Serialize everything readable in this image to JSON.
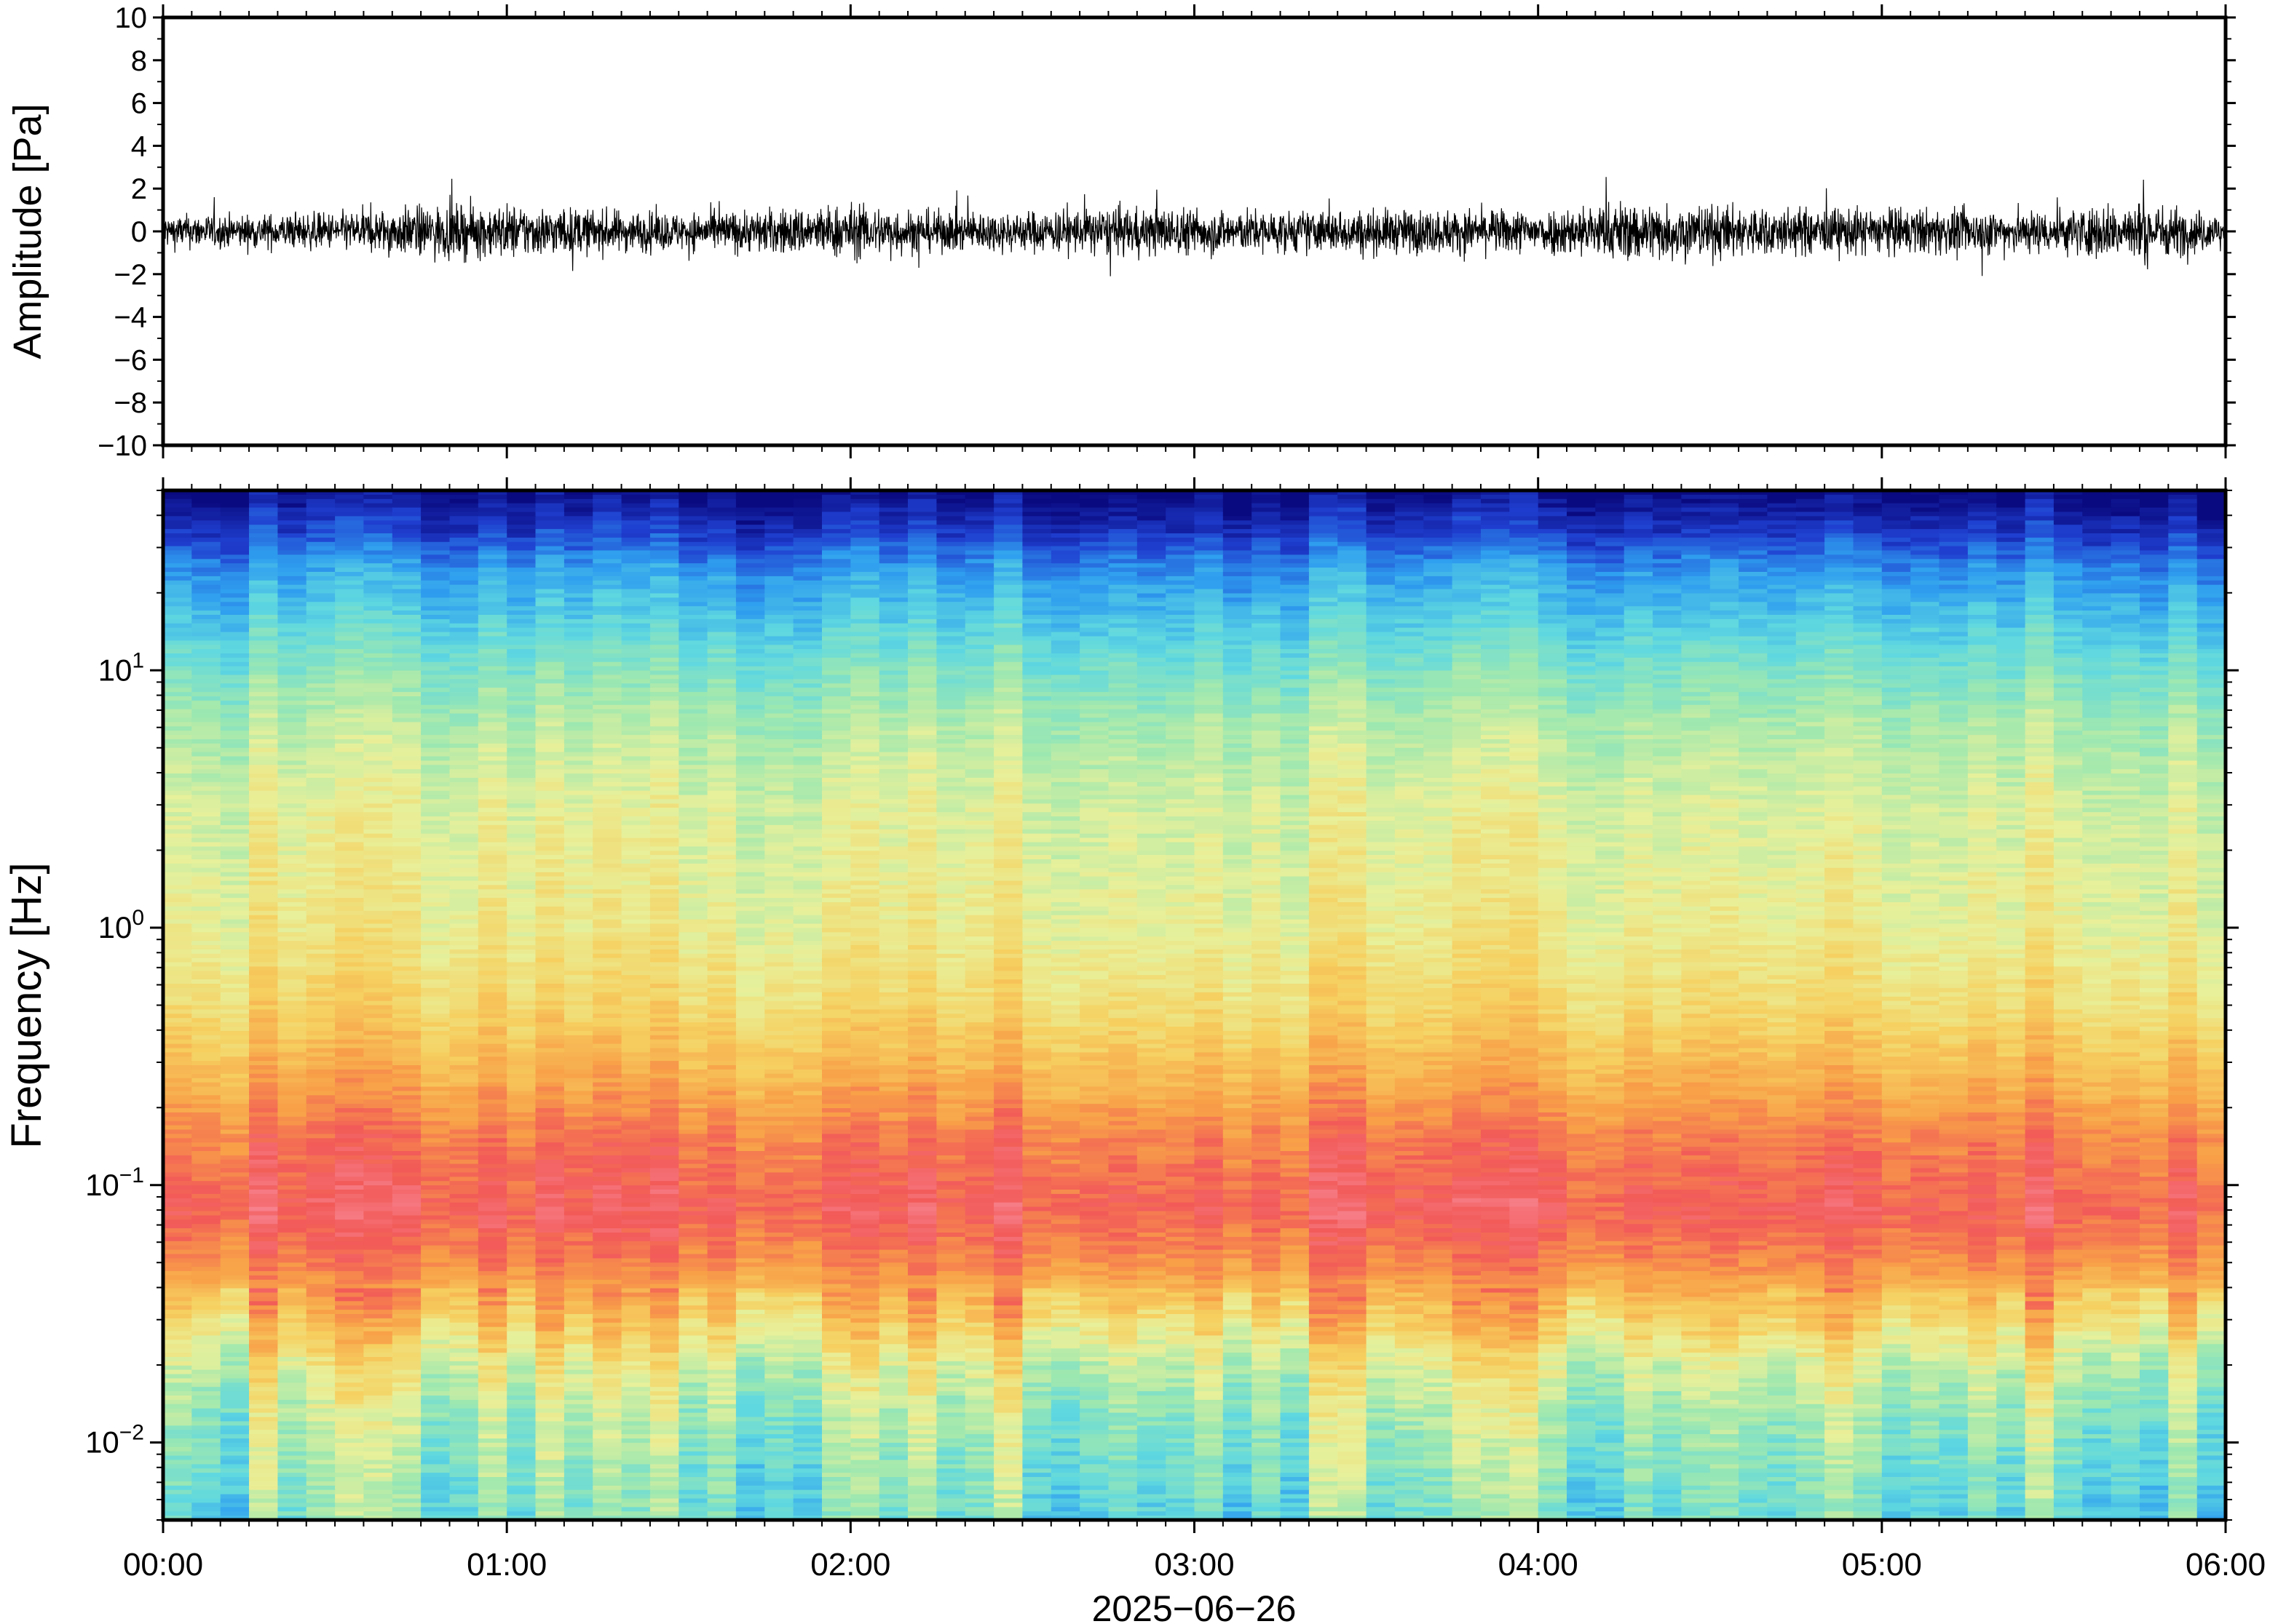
{
  "chart_data": [
    {
      "type": "line",
      "panel": "waveform",
      "ylabel": "Amplitude [Pa]",
      "ylim": [
        -10,
        10
      ],
      "yticks": [
        10,
        8,
        6,
        4,
        2,
        0,
        -2,
        -4,
        -6,
        -8,
        -10
      ],
      "ytick_labels": [
        "10",
        "8",
        "6",
        "4",
        "2",
        "0",
        "−2",
        "−4",
        "−6",
        "−8",
        "−10"
      ],
      "xlim_hours": [
        0,
        6
      ],
      "line_color": "#000000",
      "series": [
        {
          "x_hours": [
            0,
            0.25,
            0.5,
            0.75,
            1,
            1.25,
            1.5,
            1.75,
            2,
            2.25,
            2.5,
            2.75,
            3,
            3.25,
            3.5,
            3.75,
            4,
            4.25,
            4.5,
            4.75,
            5,
            5.25,
            5.5,
            5.75,
            6
          ],
          "peak_amplitude_pa": [
            1.0,
            1.0,
            1.1,
            1.5,
            1.6,
            1.3,
            1.1,
            1.3,
            1.6,
            1.2,
            1.2,
            1.4,
            1.4,
            1.2,
            1.3,
            1.3,
            1.3,
            1.8,
            1.6,
            1.4,
            1.4,
            1.3,
            1.3,
            1.8,
            1.0
          ]
        }
      ]
    },
    {
      "type": "heatmap",
      "panel": "spectrogram",
      "ylabel": "Frequency [Hz]",
      "yscale": "log",
      "ylim_hz": [
        0.005,
        50
      ],
      "yticks_hz": [
        10,
        1,
        0.1,
        0.01
      ],
      "ytick_labels": [
        {
          "base": "10",
          "exp": "1"
        },
        {
          "base": "10",
          "exp": "0"
        },
        {
          "base": "10",
          "exp": "−1"
        },
        {
          "base": "10",
          "exp": "−2"
        }
      ],
      "colormap": "rainbow",
      "colormap_stops": [
        "#0a0a80",
        "#1f3fd0",
        "#2f9fef",
        "#5fd8e0",
        "#9ee8b0",
        "#e8f09a",
        "#f6d060",
        "#f8a048",
        "#f25a58",
        "#f88a98"
      ],
      "time_columns": 72,
      "frequency_profile": [
        {
          "freq_hz": 50,
          "level": 0.0
        },
        {
          "freq_hz": 35,
          "level": 0.1
        },
        {
          "freq_hz": 25,
          "level": 0.22
        },
        {
          "freq_hz": 15,
          "level": 0.32
        },
        {
          "freq_hz": 10,
          "level": 0.4
        },
        {
          "freq_hz": 6,
          "level": 0.48
        },
        {
          "freq_hz": 3,
          "level": 0.54
        },
        {
          "freq_hz": 1,
          "level": 0.58
        },
        {
          "freq_hz": 0.5,
          "level": 0.64
        },
        {
          "freq_hz": 0.3,
          "level": 0.72
        },
        {
          "freq_hz": 0.15,
          "level": 0.84
        },
        {
          "freq_hz": 0.08,
          "level": 0.9
        },
        {
          "freq_hz": 0.05,
          "level": 0.82
        },
        {
          "freq_hz": 0.03,
          "level": 0.68
        },
        {
          "freq_hz": 0.02,
          "level": 0.55
        },
        {
          "freq_hz": 0.012,
          "level": 0.46
        },
        {
          "freq_hz": 0.005,
          "level": 0.38
        }
      ]
    }
  ],
  "xaxis": {
    "tick_labels": [
      "00:00",
      "01:00",
      "02:00",
      "03:00",
      "04:00",
      "05:00",
      "06:00"
    ],
    "date_label": "2025−06−26"
  }
}
